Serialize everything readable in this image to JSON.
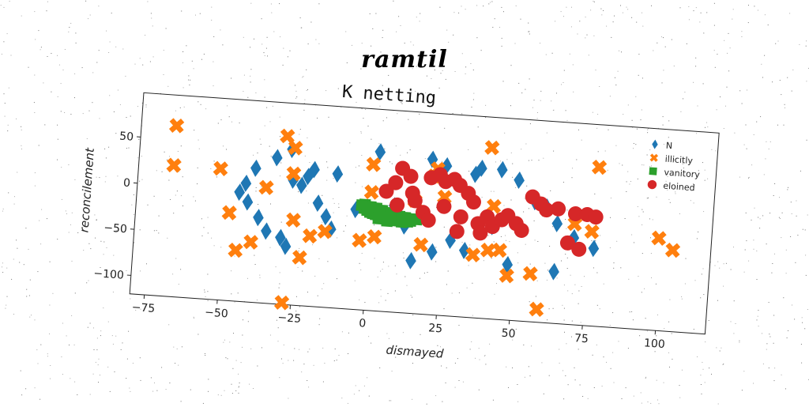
{
  "header": {
    "title": "ramtil"
  },
  "colors": {
    "N": "#1f77b4",
    "illicitly": "#ff7f0e",
    "vanitory": "#2ca02c",
    "eloined": "#d62728"
  },
  "chart_data": {
    "type": "scatter",
    "title": "K netting",
    "xlabel": "dismayed",
    "ylabel": "reconcilement",
    "xlim": [
      -80,
      117
    ],
    "ylim": [
      -120,
      98
    ],
    "xticks": [
      -75,
      -50,
      -25,
      0,
      25,
      50,
      75,
      100
    ],
    "yticks": [
      50,
      0,
      -50,
      -100
    ],
    "xtick_labels": [
      "−75",
      "−50",
      "−25",
      "0",
      "25",
      "50",
      "75",
      "100"
    ],
    "ytick_labels": [
      "50",
      "0",
      "−50",
      "−100"
    ],
    "grid": false,
    "legend_position": "top-right",
    "series": [
      {
        "name": "N",
        "marker": "diamond",
        "color": "#1f77b4",
        "points": [
          [
            -28,
            48
          ],
          [
            -33,
            38
          ],
          [
            -40,
            25
          ],
          [
            -43,
            8
          ],
          [
            -45,
            -2
          ],
          [
            -42,
            -12
          ],
          [
            -38,
            -28
          ],
          [
            -35,
            -42
          ],
          [
            -30,
            -48
          ],
          [
            -28,
            -57
          ],
          [
            -22,
            20
          ],
          [
            -20,
            28
          ],
          [
            -18,
            -8
          ],
          [
            -15,
            -22
          ],
          [
            -13,
            -35
          ],
          [
            -12,
            25
          ],
          [
            -27,
            15
          ],
          [
            2,
            52
          ],
          [
            20,
            48
          ],
          [
            25,
            42
          ],
          [
            35,
            35
          ],
          [
            37,
            42
          ],
          [
            44,
            42
          ],
          [
            50,
            32
          ],
          [
            -5,
            -12
          ],
          [
            56,
            10
          ],
          [
            60,
            5
          ],
          [
            64,
            -12
          ],
          [
            70,
            -26
          ],
          [
            77,
            -36
          ],
          [
            64,
            -64
          ],
          [
            48,
            -60
          ],
          [
            22,
            -52
          ],
          [
            15,
            -63
          ],
          [
            28,
            -38
          ],
          [
            33,
            -48
          ],
          [
            12,
            -26
          ],
          [
            8,
            -5
          ],
          [
            42,
            -20
          ],
          [
            -24,
            10
          ]
        ]
      },
      {
        "name": "illicitly",
        "marker": "x",
        "color": "#ff7f0e",
        "points": [
          [
            -68,
            65
          ],
          [
            -68,
            22
          ],
          [
            -52,
            22
          ],
          [
            -48,
            -25
          ],
          [
            -45,
            -65
          ],
          [
            -40,
            -55
          ],
          [
            -36,
            5
          ],
          [
            -30,
            62
          ],
          [
            -27,
            50
          ],
          [
            -27,
            22
          ],
          [
            -26,
            -28
          ],
          [
            -23,
            -68
          ],
          [
            -20,
            -44
          ],
          [
            -15,
            -38
          ],
          [
            -28,
            -118
          ],
          [
            0,
            38
          ],
          [
            0,
            8
          ],
          [
            -3,
            -45
          ],
          [
            2,
            -40
          ],
          [
            15,
            2
          ],
          [
            18,
            -45
          ],
          [
            22,
            38
          ],
          [
            21,
            30
          ],
          [
            25,
            8
          ],
          [
            36,
            -52
          ],
          [
            40,
            65
          ],
          [
            42,
            2
          ],
          [
            41,
            -46
          ],
          [
            48,
            -72
          ],
          [
            56,
            -68
          ],
          [
            59,
            -106
          ],
          [
            77,
            52
          ],
          [
            70,
            -11
          ],
          [
            76,
            -18
          ],
          [
            99,
            -20
          ],
          [
            104,
            -32
          ],
          [
            45,
            -45
          ]
        ]
      },
      {
        "name": "vanitory",
        "marker": "square",
        "color": "#2ca02c",
        "points": [
          [
            -3,
            -7
          ],
          [
            -2,
            -10
          ],
          [
            -1,
            -12
          ],
          [
            0,
            -14
          ],
          [
            1,
            -15
          ],
          [
            2,
            -16
          ],
          [
            3,
            -17
          ],
          [
            4,
            -18
          ],
          [
            5,
            -19
          ],
          [
            6,
            -19
          ],
          [
            7,
            -20
          ],
          [
            8,
            -20
          ],
          [
            9,
            -21
          ],
          [
            10,
            -21
          ],
          [
            11,
            -22
          ],
          [
            12,
            -21
          ],
          [
            13,
            -21
          ],
          [
            -2,
            -6
          ],
          [
            0,
            -8
          ],
          [
            2,
            -9
          ],
          [
            4,
            -11
          ],
          [
            6,
            -13
          ],
          [
            8,
            -14
          ],
          [
            10,
            -16
          ],
          [
            12,
            -17
          ],
          [
            14,
            -18
          ],
          [
            16,
            -18
          ],
          [
            5,
            -15
          ],
          [
            9,
            -18
          ],
          [
            3,
            -13
          ],
          [
            1,
            -11
          ],
          [
            -1,
            -9
          ],
          [
            7,
            -16
          ],
          [
            11,
            -19
          ],
          [
            14,
            -20
          ],
          [
            6,
            -22
          ],
          [
            3,
            -20
          ]
        ]
      },
      {
        "name": "eloined",
        "marker": "circle",
        "color": "#d62728",
        "points": [
          [
            10,
            36
          ],
          [
            13,
            28
          ],
          [
            8,
            20
          ],
          [
            5,
            10
          ],
          [
            15,
            2
          ],
          [
            18,
            -10
          ],
          [
            20,
            28
          ],
          [
            23,
            32
          ],
          [
            25,
            25
          ],
          [
            28,
            28
          ],
          [
            30,
            22
          ],
          [
            33,
            14
          ],
          [
            35,
            5
          ],
          [
            25,
            -2
          ],
          [
            31,
            -12
          ],
          [
            37,
            -18
          ],
          [
            40,
            -10
          ],
          [
            42,
            -20
          ],
          [
            45,
            -12
          ],
          [
            47,
            -7
          ],
          [
            50,
            -15
          ],
          [
            52,
            -22
          ],
          [
            55,
            15
          ],
          [
            58,
            8
          ],
          [
            60,
            2
          ],
          [
            64,
            4
          ],
          [
            70,
            0
          ],
          [
            74,
            0
          ],
          [
            77,
            -2
          ],
          [
            68,
            -32
          ],
          [
            72,
            -38
          ],
          [
            38,
            -28
          ],
          [
            30,
            -28
          ],
          [
            20,
            -18
          ],
          [
            14,
            10
          ],
          [
            9,
            -4
          ]
        ]
      }
    ]
  }
}
